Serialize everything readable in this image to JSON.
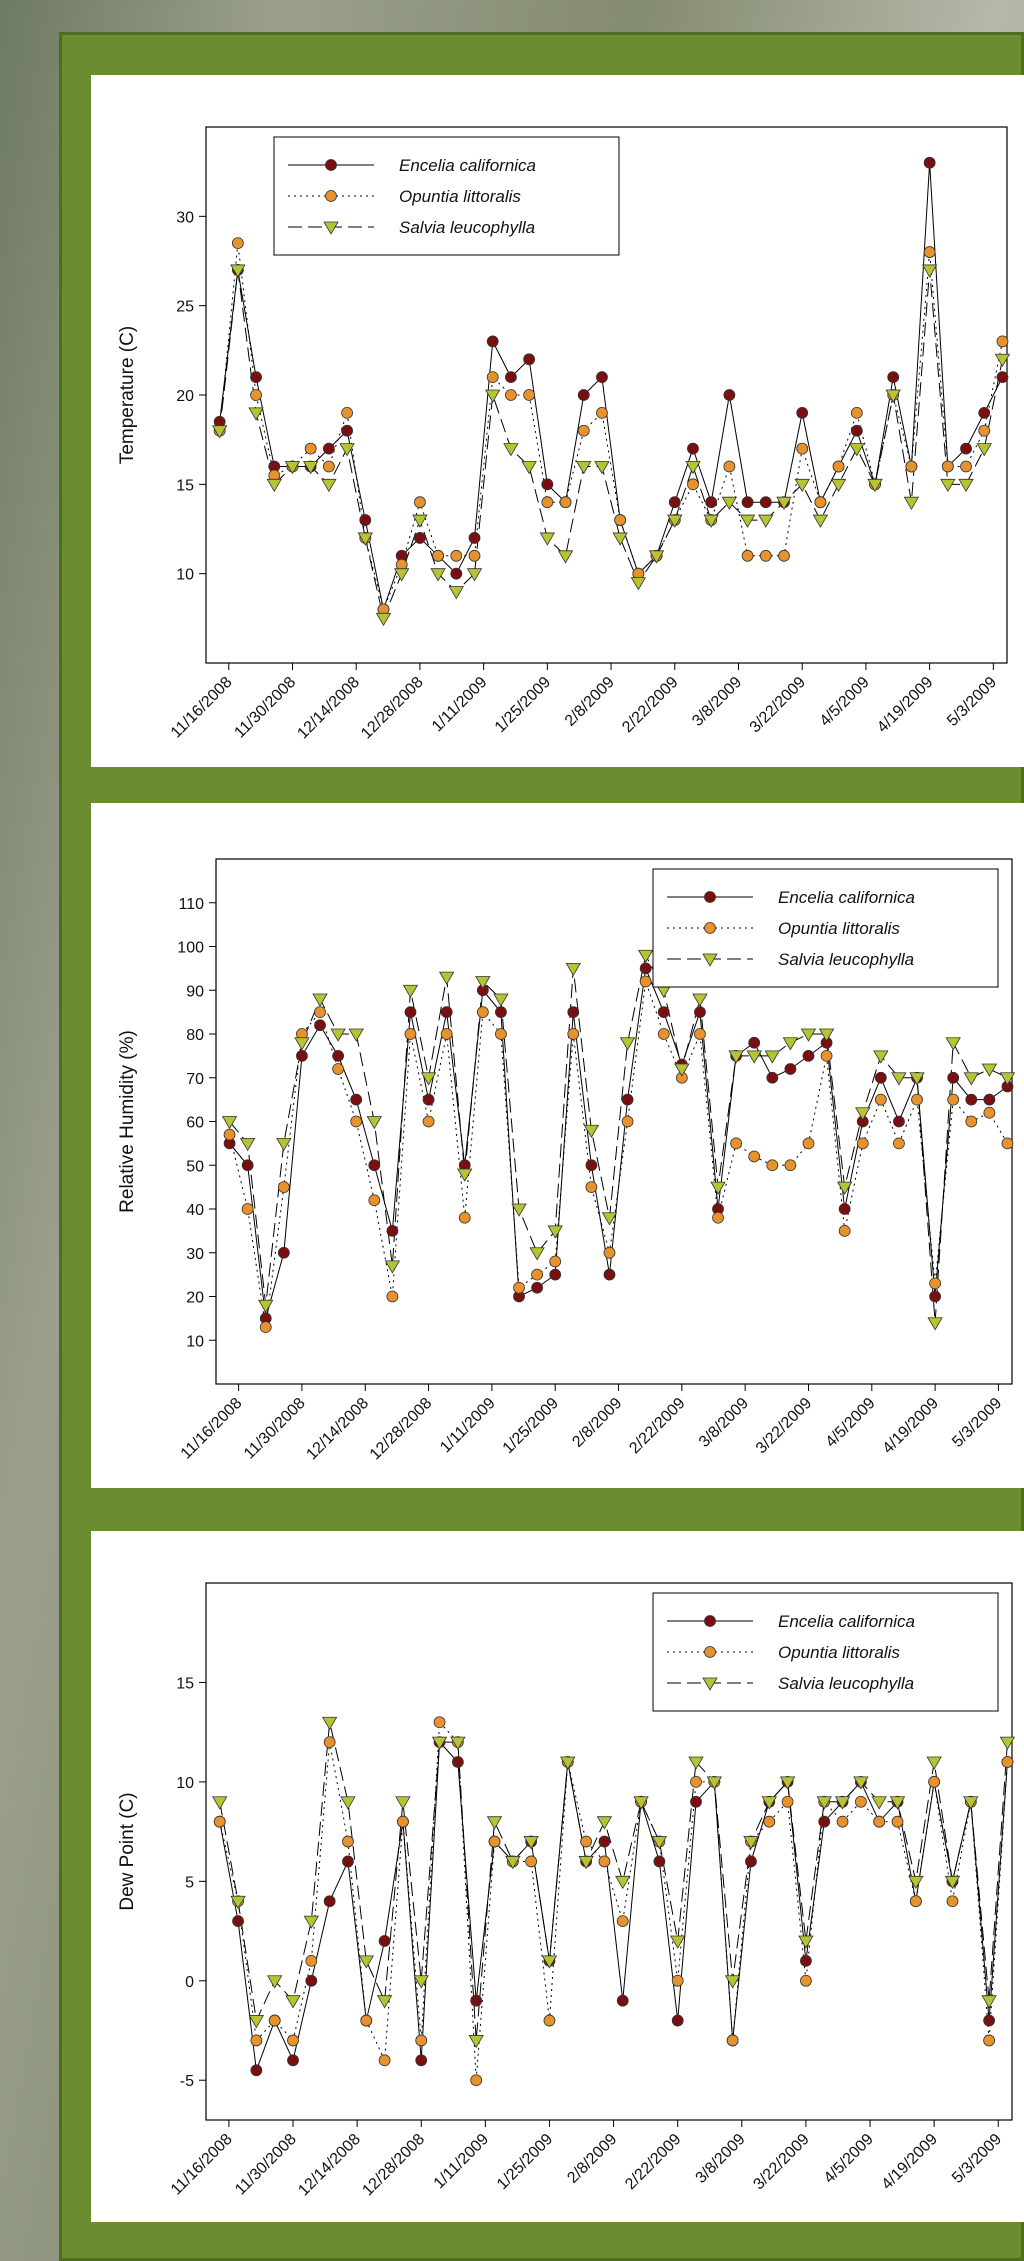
{
  "chart_data": [
    {
      "type": "line",
      "ylabel": "Temperature (C)",
      "legend": "upper left",
      "x": [
        "11/14/2008",
        "11/18/2008",
        "11/22/2008",
        "11/26/2008",
        "11/30/2008",
        "12/4/2008",
        "12/8/2008",
        "12/12/2008",
        "12/16/2008",
        "12/20/2008",
        "12/24/2008",
        "12/28/2008",
        "1/1/2009",
        "1/5/2009",
        "1/9/2009",
        "1/13/2009",
        "1/17/2009",
        "1/21/2009",
        "1/25/2009",
        "1/29/2009",
        "2/2/2009",
        "2/6/2009",
        "2/10/2009",
        "2/14/2009",
        "2/18/2009",
        "2/22/2009",
        "2/26/2009",
        "3/2/2009",
        "3/6/2009",
        "3/10/2009",
        "3/14/2009",
        "3/18/2009",
        "3/22/2009",
        "3/26/2009",
        "3/30/2009",
        "4/3/2009",
        "4/7/2009",
        "4/11/2009",
        "4/15/2009",
        "4/19/2009",
        "4/23/2009",
        "4/27/2009",
        "5/1/2009",
        "5/5/2009"
      ],
      "xlim": [
        "11/11/2008",
        "5/6/2009"
      ],
      "xticks": [
        "11/16/2008",
        "11/30/2008",
        "12/14/2008",
        "12/28/2008",
        "1/11/2009",
        "1/25/2009",
        "2/8/2009",
        "2/22/2009",
        "3/8/2009",
        "3/22/2009",
        "4/5/2009",
        "4/19/2009",
        "5/3/2009"
      ],
      "ylim": [
        5,
        35
      ],
      "yticks": [
        10,
        15,
        20,
        25,
        30
      ],
      "series": [
        {
          "name": "Encelia californica",
          "color": "#7a0f12",
          "marker": "o",
          "linestyle": "solid",
          "values": [
            18.5,
            27,
            21,
            16,
            16,
            16,
            17,
            18,
            13,
            8,
            11,
            12,
            11,
            10,
            12,
            23,
            21,
            22,
            15,
            14,
            20,
            21,
            13,
            10,
            11,
            14,
            17,
            14,
            20,
            14,
            14,
            14,
            19,
            14,
            16,
            18,
            15,
            21,
            16,
            33,
            16,
            17,
            19,
            21
          ]
        },
        {
          "name": "Opuntia littoralis",
          "color": "#e8922e",
          "marker": "o",
          "linestyle": "dotted",
          "values": [
            18,
            28.5,
            20,
            15.5,
            16,
            17,
            16,
            19,
            12,
            8,
            10.5,
            14,
            11,
            11,
            11,
            21,
            20,
            20,
            14,
            14,
            18,
            19,
            13,
            10,
            11,
            13,
            15,
            13,
            16,
            11,
            11,
            11,
            17,
            14,
            16,
            19,
            15,
            20,
            16,
            28,
            16,
            16,
            18,
            23
          ]
        },
        {
          "name": "Salvia leucophylla",
          "color": "#b6c434",
          "marker": "v",
          "linestyle": "dashed",
          "values": [
            18,
            27,
            19,
            15,
            16,
            16,
            15,
            17,
            12,
            7.5,
            10,
            13,
            10,
            9,
            10,
            20,
            17,
            16,
            12,
            11,
            16,
            16,
            12,
            9.5,
            11,
            13,
            16,
            13,
            14,
            13,
            13,
            14,
            15,
            13,
            15,
            17,
            15,
            20,
            14,
            27,
            15,
            15,
            17,
            22
          ]
        }
      ]
    },
    {
      "type": "line",
      "ylabel": "Relative Humidity (%)",
      "legend": "upper right",
      "x": [
        "11/14/2008",
        "11/18/2008",
        "11/22/2008",
        "11/26/2008",
        "11/30/2008",
        "12/4/2008",
        "12/8/2008",
        "12/12/2008",
        "12/16/2008",
        "12/20/2008",
        "12/24/2008",
        "12/28/2008",
        "1/1/2009",
        "1/5/2009",
        "1/9/2009",
        "1/13/2009",
        "1/17/2009",
        "1/21/2009",
        "1/25/2009",
        "1/29/2009",
        "2/2/2009",
        "2/6/2009",
        "2/10/2009",
        "2/14/2009",
        "2/18/2009",
        "2/22/2009",
        "2/26/2009",
        "3/2/2009",
        "3/6/2009",
        "3/10/2009",
        "3/14/2009",
        "3/18/2009",
        "3/22/2009",
        "3/26/2009",
        "3/30/2009",
        "4/3/2009",
        "4/7/2009",
        "4/11/2009",
        "4/15/2009",
        "4/19/2009",
        "4/23/2009",
        "4/27/2009",
        "5/1/2009",
        "5/5/2009"
      ],
      "xlim": [
        "11/11/2008",
        "5/6/2009"
      ],
      "xticks": [
        "11/16/2008",
        "11/30/2008",
        "12/14/2008",
        "12/28/2008",
        "1/11/2009",
        "1/25/2009",
        "2/8/2009",
        "2/22/2009",
        "3/8/2009",
        "3/22/2009",
        "4/5/2009",
        "4/19/2009",
        "5/3/2009"
      ],
      "ylim": [
        0,
        120
      ],
      "yticks": [
        10,
        20,
        30,
        40,
        50,
        60,
        70,
        80,
        90,
        100,
        110
      ],
      "series": [
        {
          "name": "Encelia californica",
          "color": "#7a0f12",
          "marker": "o",
          "linestyle": "solid",
          "values": [
            55,
            50,
            15,
            30,
            75,
            82,
            75,
            65,
            50,
            35,
            85,
            65,
            85,
            50,
            90,
            85,
            20,
            22,
            25,
            85,
            50,
            25,
            65,
            95,
            85,
            73,
            85,
            40,
            75,
            78,
            70,
            72,
            75,
            78,
            40,
            60,
            70,
            60,
            70,
            20,
            70,
            65,
            65,
            68
          ]
        },
        {
          "name": "Opuntia littoralis",
          "color": "#e8922e",
          "marker": "o",
          "linestyle": "dotted",
          "values": [
            57,
            40,
            13,
            45,
            80,
            85,
            72,
            60,
            42,
            20,
            80,
            60,
            80,
            38,
            85,
            80,
            22,
            25,
            28,
            80,
            45,
            30,
            60,
            92,
            80,
            70,
            80,
            38,
            55,
            52,
            50,
            50,
            55,
            75,
            35,
            55,
            65,
            55,
            65,
            23,
            65,
            60,
            62,
            55
          ]
        },
        {
          "name": "Salvia leucophylla",
          "color": "#b6c434",
          "marker": "v",
          "linestyle": "dashed",
          "values": [
            60,
            55,
            18,
            55,
            78,
            88,
            80,
            80,
            60,
            27,
            90,
            70,
            93,
            48,
            92,
            88,
            40,
            30,
            35,
            95,
            58,
            38,
            78,
            98,
            90,
            72,
            88,
            45,
            75,
            75,
            75,
            78,
            80,
            80,
            45,
            62,
            75,
            70,
            70,
            14,
            78,
            70,
            72,
            70
          ]
        }
      ]
    },
    {
      "type": "line",
      "ylabel": "Dew Point (C)",
      "legend": "upper right",
      "x": [
        "11/14/2008",
        "11/18/2008",
        "11/22/2008",
        "11/26/2008",
        "11/30/2008",
        "12/4/2008",
        "12/8/2008",
        "12/12/2008",
        "12/16/2008",
        "12/20/2008",
        "12/24/2008",
        "12/28/2008",
        "1/1/2009",
        "1/5/2009",
        "1/9/2009",
        "1/13/2009",
        "1/17/2009",
        "1/21/2009",
        "1/25/2009",
        "1/29/2009",
        "2/2/2009",
        "2/6/2009",
        "2/10/2009",
        "2/14/2009",
        "2/18/2009",
        "2/22/2009",
        "2/26/2009",
        "3/2/2009",
        "3/6/2009",
        "3/10/2009",
        "3/14/2009",
        "3/18/2009",
        "3/22/2009",
        "3/26/2009",
        "3/30/2009",
        "4/3/2009",
        "4/7/2009",
        "4/11/2009",
        "4/15/2009",
        "4/19/2009",
        "4/23/2009",
        "4/27/2009",
        "5/1/2009",
        "5/5/2009"
      ],
      "xlim": [
        "11/11/2008",
        "5/6/2009"
      ],
      "xticks": [
        "11/16/2008",
        "11/30/2008",
        "12/14/2008",
        "12/28/2008",
        "1/11/2009",
        "1/25/2009",
        "2/8/2009",
        "2/22/2009",
        "3/8/2009",
        "3/22/2009",
        "4/5/2009",
        "4/19/2009",
        "5/3/2009"
      ],
      "ylim": [
        -7,
        20
      ],
      "yticks": [
        -5,
        0,
        5,
        10,
        15
      ],
      "series": [
        {
          "name": "Encelia californica",
          "color": "#7a0f12",
          "marker": "o",
          "linestyle": "solid",
          "values": [
            8,
            3,
            -4.5,
            -2,
            -4,
            0,
            4,
            6,
            -2,
            2,
            8,
            -4,
            12,
            11,
            -1,
            7,
            6,
            7,
            1,
            11,
            6,
            7,
            -1,
            9,
            6,
            -2,
            9,
            10,
            -3,
            6,
            9,
            10,
            1,
            8,
            9,
            10,
            8,
            9,
            4,
            10,
            5,
            9,
            -2,
            11
          ]
        },
        {
          "name": "Opuntia littoralis",
          "color": "#e8922e",
          "marker": "o",
          "linestyle": "dotted",
          "values": [
            8,
            4,
            -3,
            -2,
            -3,
            1,
            12,
            7,
            -2,
            -4,
            8,
            -3,
            13,
            12,
            -5,
            7,
            6,
            6,
            -2,
            11,
            7,
            6,
            3,
            9,
            7,
            0,
            10,
            10,
            -3,
            7,
            8,
            9,
            0,
            9,
            8,
            9,
            8,
            8,
            4,
            10,
            4,
            9,
            -3,
            11
          ]
        },
        {
          "name": "Salvia leucophylla",
          "color": "#b6c434",
          "marker": "v",
          "linestyle": "dashed",
          "values": [
            9,
            4,
            -2,
            0,
            -1,
            3,
            13,
            9,
            1,
            -1,
            9,
            0,
            12,
            12,
            -3,
            8,
            6,
            7,
            1,
            11,
            6,
            8,
            5,
            9,
            7,
            2,
            11,
            10,
            0,
            7,
            9,
            10,
            2,
            9,
            9,
            10,
            9,
            9,
            5,
            11,
            5,
            9,
            -1,
            12
          ]
        }
      ]
    }
  ]
}
